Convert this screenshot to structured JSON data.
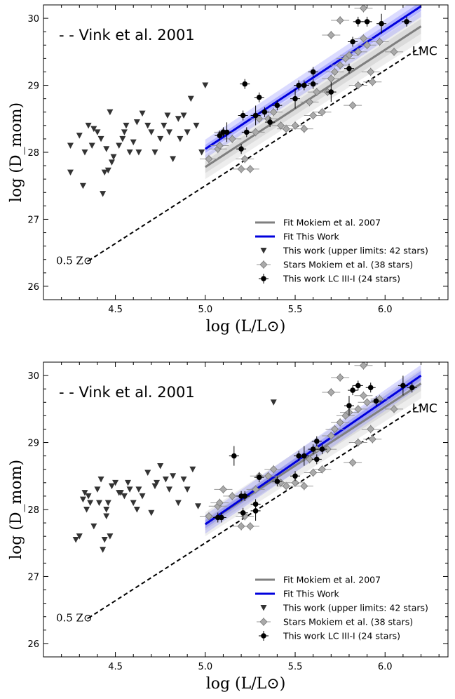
{
  "chart_data": [
    {
      "type": "scatter",
      "panel": "top",
      "xlabel": "log (L/L⊙)",
      "ylabel": "log (D_mom)",
      "xlim": [
        4.1,
        6.35
      ],
      "ylim": [
        25.8,
        30.2
      ],
      "xticks": [
        "4.5",
        "5.0",
        "5.5",
        "6.0"
      ],
      "yticks": [
        "26",
        "27",
        "28",
        "29",
        "30"
      ],
      "annotations": {
        "vink": "- - Vink et al. 2001",
        "lmc": "LMC",
        "z": "0.5 Z⊙"
      },
      "vink_line": {
        "x": [
          4.35,
          6.2
        ],
        "y": [
          26.38,
          29.57
        ]
      },
      "fit_mokiem": {
        "name": "Fit Mokiem et al. 2007",
        "x": [
          5.0,
          6.2
        ],
        "y": [
          27.78,
          29.88
        ],
        "color": "#7f7f7f"
      },
      "fit_this_work": {
        "name": "Fit This Work",
        "x": [
          5.0,
          6.2
        ],
        "y": [
          28.05,
          30.18
        ],
        "color": "#0000dd"
      },
      "legend": [
        {
          "label": "Fit Mokiem et al. 2007",
          "marker": "line",
          "color": "#7f7f7f"
        },
        {
          "label": "Fit This Work",
          "marker": "line",
          "color": "#0000dd"
        },
        {
          "label": "This work (upper limits: 42 stars)",
          "marker": "triangle",
          "color": "#333333"
        },
        {
          "label": "Stars Mokiem et al. (38 stars)",
          "marker": "diamond",
          "color": "#aaaaaa"
        },
        {
          "label": "This work LC III-I (24 stars)",
          "marker": "circle",
          "color": "#000000"
        }
      ],
      "upper_limits": [
        [
          4.25,
          28.1
        ],
        [
          4.25,
          27.7
        ],
        [
          4.3,
          28.25
        ],
        [
          4.32,
          27.5
        ],
        [
          4.33,
          28.0
        ],
        [
          4.35,
          28.4
        ],
        [
          4.37,
          28.1
        ],
        [
          4.38,
          28.35
        ],
        [
          4.4,
          28.3
        ],
        [
          4.42,
          28.2
        ],
        [
          4.43,
          27.38
        ],
        [
          4.44,
          27.7
        ],
        [
          4.45,
          28.05
        ],
        [
          4.46,
          27.73
        ],
        [
          4.47,
          28.6
        ],
        [
          4.48,
          27.85
        ],
        [
          4.49,
          27.93
        ],
        [
          4.55,
          28.3
        ],
        [
          4.56,
          28.4
        ],
        [
          4.6,
          28.15
        ],
        [
          4.63,
          28.0
        ],
        [
          4.65,
          28.58
        ],
        [
          4.7,
          28.3
        ],
        [
          4.72,
          28.0
        ],
        [
          4.77,
          28.4
        ],
        [
          4.79,
          28.55
        ],
        [
          4.8,
          28.3
        ],
        [
          4.82,
          27.9
        ],
        [
          4.85,
          28.5
        ],
        [
          4.88,
          28.55
        ],
        [
          4.92,
          28.8
        ],
        [
          4.98,
          28.0
        ],
        [
          5.0,
          29.0
        ],
        [
          4.62,
          28.45
        ],
        [
          4.75,
          28.2
        ],
        [
          4.52,
          28.1
        ],
        [
          4.68,
          28.4
        ],
        [
          4.9,
          28.3
        ],
        [
          4.58,
          28.0
        ],
        [
          4.86,
          28.2
        ],
        [
          4.95,
          28.4
        ],
        [
          4.54,
          28.2
        ]
      ],
      "mokiem_stars": [
        [
          5.02,
          27.9
        ],
        [
          5.07,
          28.05
        ],
        [
          5.1,
          28.3
        ],
        [
          5.15,
          28.2
        ],
        [
          5.2,
          27.75
        ],
        [
          5.22,
          27.9
        ],
        [
          5.25,
          27.75
        ],
        [
          5.3,
          28.5
        ],
        [
          5.38,
          28.6
        ],
        [
          5.45,
          28.35
        ],
        [
          5.5,
          28.4
        ],
        [
          5.55,
          28.35
        ],
        [
          5.58,
          28.75
        ],
        [
          5.6,
          28.55
        ],
        [
          5.65,
          28.6
        ],
        [
          5.68,
          28.9
        ],
        [
          5.72,
          29.2
        ],
        [
          5.75,
          29.3
        ],
        [
          5.8,
          29.45
        ],
        [
          5.82,
          28.7
        ],
        [
          5.85,
          29.5
        ],
        [
          5.88,
          29.7
        ],
        [
          5.9,
          29.6
        ],
        [
          5.92,
          29.2
        ],
        [
          5.93,
          29.05
        ],
        [
          5.97,
          29.65
        ],
        [
          6.05,
          29.5
        ],
        [
          5.85,
          29.0
        ],
        [
          5.78,
          29.4
        ],
        [
          5.7,
          29.1
        ],
        [
          5.62,
          28.9
        ],
        [
          5.42,
          28.4
        ],
        [
          5.35,
          28.5
        ],
        [
          5.28,
          28.3
        ],
        [
          5.08,
          28.1
        ],
        [
          5.88,
          30.15
        ],
        [
          5.7,
          29.75
        ],
        [
          5.75,
          29.97
        ]
      ],
      "lc_stars": [
        [
          5.08,
          28.25
        ],
        [
          5.1,
          28.3
        ],
        [
          5.12,
          28.3
        ],
        [
          5.2,
          28.05
        ],
        [
          5.21,
          28.55
        ],
        [
          5.22,
          29.02
        ],
        [
          5.23,
          28.3
        ],
        [
          5.28,
          28.55
        ],
        [
          5.3,
          28.82
        ],
        [
          5.33,
          28.6
        ],
        [
          5.36,
          28.45
        ],
        [
          5.4,
          28.7
        ],
        [
          5.5,
          28.8
        ],
        [
          5.52,
          29.0
        ],
        [
          5.55,
          29.0
        ],
        [
          5.6,
          29.2
        ],
        [
          5.6,
          29.02
        ],
        [
          5.7,
          28.9
        ],
        [
          5.8,
          29.25
        ],
        [
          5.82,
          29.65
        ],
        [
          5.85,
          29.95
        ],
        [
          5.9,
          29.95
        ],
        [
          5.98,
          29.92
        ],
        [
          6.12,
          29.95
        ]
      ]
    },
    {
      "type": "scatter",
      "panel": "bottom",
      "xlabel": "log (L/L⊙)",
      "ylabel": "log (D_mom)",
      "xlim": [
        4.1,
        6.35
      ],
      "ylim": [
        25.8,
        30.2
      ],
      "xticks": [
        "4.5",
        "5.0",
        "5.5",
        "6.0"
      ],
      "yticks": [
        "26",
        "27",
        "28",
        "29",
        "30"
      ],
      "annotations": {
        "vink": "- - Vink et al. 2001",
        "lmc": "LMC",
        "z": "0.5 Z⊙"
      },
      "vink_line": {
        "x": [
          4.35,
          6.2
        ],
        "y": [
          26.38,
          29.57
        ]
      },
      "fit_mokiem": {
        "name": "Fit Mokiem et al. 2007",
        "x": [
          5.0,
          6.2
        ],
        "y": [
          27.78,
          29.88
        ],
        "color": "#7f7f7f"
      },
      "fit_this_work": {
        "name": "Fit This Work",
        "x": [
          5.0,
          6.2
        ],
        "y": [
          27.78,
          30.0
        ],
        "color": "#0000dd"
      },
      "legend": [
        {
          "label": "Fit Mokiem et al. 2007",
          "marker": "line",
          "color": "#7f7f7f"
        },
        {
          "label": "Fit This Work",
          "marker": "line",
          "color": "#0000dd"
        },
        {
          "label": "This work (upper limits: 42 stars)",
          "marker": "triangle",
          "color": "#333333"
        },
        {
          "label": "Stars Mokiem et al. (38 stars)",
          "marker": "diamond",
          "color": "#aaaaaa"
        },
        {
          "label": "This work LC III-I (24 stars)",
          "marker": "circle",
          "color": "#000000"
        }
      ],
      "upper_limits": [
        [
          4.28,
          27.55
        ],
        [
          4.3,
          27.6
        ],
        [
          4.32,
          28.15
        ],
        [
          4.33,
          28.25
        ],
        [
          4.35,
          28.2
        ],
        [
          4.36,
          28.1
        ],
        [
          4.38,
          27.75
        ],
        [
          4.4,
          28.3
        ],
        [
          4.42,
          28.45
        ],
        [
          4.43,
          27.4
        ],
        [
          4.44,
          27.55
        ],
        [
          4.45,
          28.0
        ],
        [
          4.46,
          28.1
        ],
        [
          4.47,
          27.6
        ],
        [
          4.48,
          28.35
        ],
        [
          4.5,
          28.4
        ],
        [
          4.52,
          28.25
        ],
        [
          4.55,
          28.2
        ],
        [
          4.57,
          28.4
        ],
        [
          4.6,
          28.1
        ],
        [
          4.63,
          28.3
        ],
        [
          4.65,
          28.2
        ],
        [
          4.68,
          28.55
        ],
        [
          4.7,
          27.95
        ],
        [
          4.73,
          28.4
        ],
        [
          4.75,
          28.65
        ],
        [
          4.78,
          28.45
        ],
        [
          4.8,
          28.3
        ],
        [
          4.82,
          28.5
        ],
        [
          4.85,
          28.1
        ],
        [
          4.88,
          28.45
        ],
        [
          4.9,
          28.3
        ],
        [
          4.93,
          28.6
        ],
        [
          4.96,
          28.05
        ],
        [
          5.38,
          29.6
        ],
        [
          4.45,
          27.9
        ],
        [
          4.53,
          28.25
        ],
        [
          4.62,
          28.0
        ],
        [
          4.72,
          28.35
        ],
        [
          4.34,
          28.0
        ],
        [
          4.41,
          28.1
        ],
        [
          4.58,
          28.3
        ]
      ],
      "mokiem_stars": [
        [
          5.02,
          27.9
        ],
        [
          5.07,
          28.05
        ],
        [
          5.1,
          28.3
        ],
        [
          5.15,
          28.2
        ],
        [
          5.2,
          27.75
        ],
        [
          5.22,
          27.9
        ],
        [
          5.25,
          27.75
        ],
        [
          5.3,
          28.5
        ],
        [
          5.38,
          28.6
        ],
        [
          5.45,
          28.35
        ],
        [
          5.5,
          28.4
        ],
        [
          5.55,
          28.35
        ],
        [
          5.58,
          28.75
        ],
        [
          5.6,
          28.55
        ],
        [
          5.65,
          28.6
        ],
        [
          5.68,
          28.9
        ],
        [
          5.72,
          29.2
        ],
        [
          5.75,
          29.3
        ],
        [
          5.8,
          29.45
        ],
        [
          5.82,
          28.7
        ],
        [
          5.85,
          29.5
        ],
        [
          5.88,
          29.7
        ],
        [
          5.9,
          29.6
        ],
        [
          5.92,
          29.2
        ],
        [
          5.93,
          29.05
        ],
        [
          5.97,
          29.65
        ],
        [
          6.05,
          29.5
        ],
        [
          5.85,
          29.0
        ],
        [
          5.78,
          29.4
        ],
        [
          5.7,
          29.1
        ],
        [
          5.62,
          28.9
        ],
        [
          5.42,
          28.4
        ],
        [
          5.35,
          28.5
        ],
        [
          5.28,
          28.3
        ],
        [
          5.08,
          28.1
        ],
        [
          5.88,
          30.15
        ],
        [
          5.7,
          29.75
        ],
        [
          5.75,
          29.97
        ]
      ],
      "lc_stars": [
        [
          5.07,
          27.88
        ],
        [
          5.09,
          27.88
        ],
        [
          5.16,
          28.8
        ],
        [
          5.2,
          28.2
        ],
        [
          5.22,
          28.2
        ],
        [
          5.21,
          27.95
        ],
        [
          5.28,
          28.08
        ],
        [
          5.28,
          27.98
        ],
        [
          5.3,
          28.48
        ],
        [
          5.4,
          28.42
        ],
        [
          5.5,
          28.5
        ],
        [
          5.52,
          28.8
        ],
        [
          5.55,
          28.8
        ],
        [
          5.6,
          28.9
        ],
        [
          5.62,
          29.02
        ],
        [
          5.62,
          28.75
        ],
        [
          5.65,
          28.9
        ],
        [
          5.8,
          29.55
        ],
        [
          5.82,
          29.78
        ],
        [
          5.85,
          29.85
        ],
        [
          5.92,
          29.82
        ],
        [
          5.95,
          29.62
        ],
        [
          6.1,
          29.85
        ],
        [
          6.15,
          29.82
        ]
      ]
    }
  ]
}
